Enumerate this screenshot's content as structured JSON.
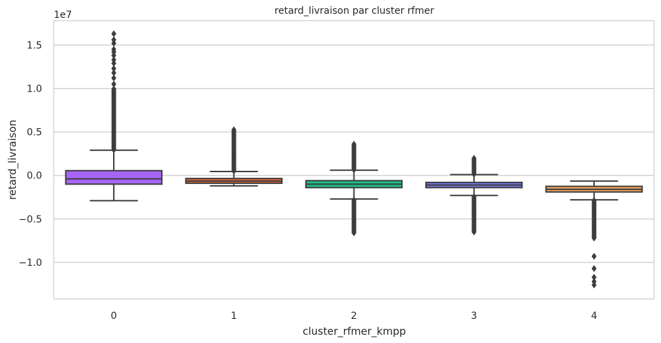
{
  "chart_data": {
    "type": "box",
    "title": "retard_livraison par cluster rfmer",
    "xlabel": "cluster_rfmer_kmpp",
    "ylabel": "retard_livraison",
    "y_offset_label": "1e7",
    "y_scale": 10000000,
    "ylim": [
      -14200000,
      17800000
    ],
    "yticks": [
      -10000000,
      -5000000,
      0,
      5000000,
      10000000,
      15000000
    ],
    "ytick_labels": [
      "−1.0",
      "−0.5",
      "0.0",
      "0.5",
      "1.0",
      "1.5"
    ],
    "grid": true,
    "categories": [
      "0",
      "1",
      "2",
      "3",
      "4"
    ],
    "boxes": [
      {
        "category": "0",
        "color": "#a865f5",
        "whisker_low": -2900000,
        "q1": -1000000,
        "median": -400000,
        "q3": 550000,
        "whisker_high": 2900000,
        "outliers_high_range": [
          2950000,
          10000000
        ],
        "outliers_low_range": null,
        "outliers_extra": [
          10500000,
          11200000,
          11800000,
          12300000,
          12900000,
          13300000,
          13800000,
          14200000,
          14500000,
          15200000,
          15600000,
          16300000
        ]
      },
      {
        "category": "1",
        "color": "#e2663e",
        "whisker_low": -1200000,
        "q1": -900000,
        "median": -650000,
        "q3": -350000,
        "whisker_high": 450000,
        "outliers_high_range": [
          500000,
          5300000
        ],
        "outliers_low_range": null,
        "outliers_extra": []
      },
      {
        "category": "2",
        "color": "#1dbf8a",
        "whisker_low": -2700000,
        "q1": -1400000,
        "median": -1000000,
        "q3": -600000,
        "whisker_high": 600000,
        "outliers_high_range": [
          650000,
          3700000
        ],
        "outliers_low_range": [
          -6600000,
          -2750000
        ],
        "outliers_extra": []
      },
      {
        "category": "3",
        "color": "#7479e8",
        "whisker_low": -2300000,
        "q1": -1400000,
        "median": -1100000,
        "q3": -800000,
        "whisker_high": 100000,
        "outliers_high_range": [
          150000,
          2100000
        ],
        "outliers_low_range": [
          -6500000,
          -2350000
        ],
        "outliers_extra": []
      },
      {
        "category": "4",
        "color": "#f1a261",
        "whisker_low": -2800000,
        "q1": -1900000,
        "median": -1600000,
        "q3": -1250000,
        "whisker_high": -650000,
        "outliers_high_range": null,
        "outliers_low_range": [
          -7200000,
          -2850000
        ],
        "outliers_extra": [
          -9300000,
          -10700000,
          -11700000,
          -12200000,
          -12600000
        ]
      }
    ]
  }
}
